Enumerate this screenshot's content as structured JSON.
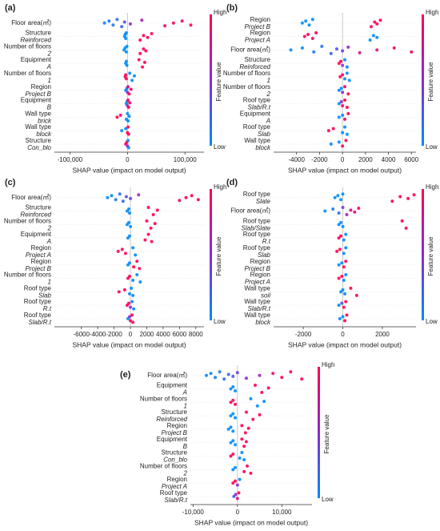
{
  "chart_data": [
    {
      "type": "beeswarm",
      "panel": "(a)",
      "xlabel": "SHAP value (impact on model output)",
      "colorbar_high": "High",
      "colorbar_low": "Low",
      "colorbar_label": "Feature value",
      "xlim": [
        -127000,
        133000
      ],
      "xticks": [
        {
          "value": -100000,
          "label": "-100,000"
        },
        0,
        {
          "value": 100000,
          "label": "100,000"
        }
      ],
      "features": [
        {
          "name": "Floor area(㎡)",
          "shap": [
            -40000,
            -32000,
            -25000,
            -18000,
            -10000,
            -5000,
            5000,
            25000,
            65000,
            80000,
            95000,
            110000
          ],
          "feature_value": [
            0.05,
            0.1,
            0.1,
            0.15,
            0.2,
            0.3,
            0.5,
            0.6,
            0.9,
            0.95,
            0.9,
            1
          ]
        },
        {
          "name": "Structure",
          "value": "Reinforced",
          "shap": [
            -5000,
            -4000,
            -3000,
            -2000,
            22000,
            28000,
            35000,
            42000
          ],
          "feature_value": [
            0,
            0,
            0,
            0,
            1,
            1,
            1,
            1
          ]
        },
        {
          "name": "Number of floors",
          "value": "2",
          "shap": [
            -6000,
            -4000,
            -2000,
            -1000,
            22000,
            28000,
            32000
          ],
          "feature_value": [
            0,
            0,
            0,
            0,
            1,
            1,
            1
          ]
        },
        {
          "name": "Equipment",
          "value": "A",
          "shap": [
            -3000,
            -2000,
            -1000,
            20000,
            26000,
            30000
          ],
          "feature_value": [
            0,
            0,
            0,
            1,
            1,
            1
          ]
        },
        {
          "name": "Number of floors",
          "value": "1",
          "shap": [
            -4000,
            -3000,
            -2000,
            4000,
            8000,
            12000
          ],
          "feature_value": [
            1,
            1,
            1,
            0,
            0,
            0
          ]
        },
        {
          "name": "Region",
          "value": "Project B",
          "shap": [
            -3000,
            -1000,
            0,
            1000,
            3000,
            6000
          ],
          "feature_value": [
            0,
            0.2,
            0.5,
            0.8,
            1,
            1
          ]
        },
        {
          "name": "Equipment",
          "value": "B",
          "shap": [
            -2000,
            -1000,
            0,
            1000,
            2000,
            4000
          ],
          "feature_value": [
            0,
            0,
            0.5,
            1,
            1,
            1
          ]
        },
        {
          "name": "Wall type",
          "value": "brick",
          "shap": [
            -18000,
            -12000,
            -2000,
            0,
            1000,
            3000
          ],
          "feature_value": [
            1,
            1,
            0,
            0,
            0,
            0
          ]
        },
        {
          "name": "Wall type",
          "value": "block",
          "shap": [
            -10000,
            -3000,
            0,
            1000,
            2000
          ],
          "feature_value": [
            0,
            0,
            1,
            1,
            1
          ]
        },
        {
          "name": "Structure",
          "value": "Con_blo",
          "shap": [
            -3000,
            -1000,
            0,
            1000,
            2000
          ],
          "feature_value": [
            1,
            1,
            0.5,
            0,
            0
          ]
        }
      ]
    },
    {
      "type": "beeswarm",
      "panel": "(b)",
      "xlabel": "SHAP value (impact on model output)",
      "colorbar_high": "High",
      "colorbar_low": "Low",
      "colorbar_label": "Feature value",
      "xlim": [
        -6000,
        6400
      ],
      "xticks": [
        -4000,
        -2000,
        0,
        2000,
        4000,
        6000
      ],
      "features": [
        {
          "name": "Region",
          "value": "Project B",
          "shap": [
            -3500,
            -3200,
            -2900,
            -2600,
            2500,
            2800,
            3000,
            3300
          ],
          "feature_value": [
            0,
            0,
            0,
            0,
            1,
            1,
            1,
            1
          ]
        },
        {
          "name": "Region",
          "value": "Project A",
          "shap": [
            -3300,
            -3000,
            -2600,
            -2300,
            2400,
            2700,
            3000
          ],
          "feature_value": [
            1,
            1,
            1,
            1,
            0,
            0,
            0
          ]
        },
        {
          "name": "Floor area(㎡)",
          "shap": [
            -4500,
            -3500,
            -2500,
            -1800,
            -1000,
            -500,
            0,
            500,
            1500,
            3000,
            4500,
            6000
          ],
          "feature_value": [
            0,
            0,
            0.1,
            0.1,
            0.2,
            0.3,
            0.4,
            0.6,
            0.8,
            0.9,
            1,
            1
          ]
        },
        {
          "name": "Structure",
          "value": "Reinforced",
          "shap": [
            -300,
            -150,
            0,
            200,
            400
          ],
          "feature_value": [
            1,
            1,
            0.5,
            0,
            0
          ]
        },
        {
          "name": "Number of floors",
          "value": "1",
          "shap": [
            -200,
            0,
            200,
            400,
            600
          ],
          "feature_value": [
            1,
            1,
            0,
            0,
            0
          ]
        },
        {
          "name": "Number of floors",
          "value": "2",
          "shap": [
            -300,
            -100,
            0,
            200,
            500
          ],
          "feature_value": [
            0,
            0,
            0.5,
            1,
            1
          ]
        },
        {
          "name": "Roof type",
          "value": "Slab/R.t",
          "shap": [
            -300,
            -100,
            0,
            200,
            400
          ],
          "feature_value": [
            0,
            0.5,
            1,
            1,
            1
          ]
        },
        {
          "name": "Equipment",
          "value": "A",
          "shap": [
            -300,
            0,
            200,
            500
          ],
          "feature_value": [
            0,
            0,
            1,
            1
          ]
        },
        {
          "name": "Roof type",
          "value": "Slab",
          "shap": [
            -1200,
            -800,
            0,
            200,
            400
          ],
          "feature_value": [
            1,
            1,
            0,
            0,
            0
          ]
        },
        {
          "name": "Wall type",
          "value": "block",
          "shap": [
            -1000,
            -300,
            0,
            300
          ],
          "feature_value": [
            0,
            0,
            1,
            1
          ]
        }
      ]
    },
    {
      "type": "beeswarm",
      "panel": "(c)",
      "xlabel": "SHAP value (impact on model output)",
      "colorbar_high": "High",
      "colorbar_low": "Low",
      "colorbar_label": "Feature value",
      "xlim": [
        -9300,
        9000
      ],
      "xticks": [
        -6000,
        -4000,
        -2000,
        0,
        2000,
        4000,
        6000,
        8000
      ],
      "features": [
        {
          "name": "Floor area(㎡)",
          "shap": [
            -2800,
            -2300,
            -1800,
            -1300,
            -900,
            -500,
            0,
            1000,
            6000,
            6800,
            7500,
            8300
          ],
          "feature_value": [
            0,
            0,
            0.1,
            0.1,
            0.2,
            0.3,
            0.4,
            0.6,
            0.9,
            1,
            1,
            1
          ]
        },
        {
          "name": "Structure",
          "value": "Reinforced",
          "shap": [
            -400,
            -200,
            -100,
            2200,
            2800,
            3300
          ],
          "feature_value": [
            0,
            0,
            0,
            1,
            1,
            1
          ]
        },
        {
          "name": "Number of floors",
          "value": "2",
          "shap": [
            -400,
            -200,
            0,
            2000,
            2500,
            3000
          ],
          "feature_value": [
            0,
            0,
            0,
            1,
            1,
            1
          ]
        },
        {
          "name": "Equipment",
          "value": "A",
          "shap": [
            -300,
            -100,
            1800,
            2200,
            2600
          ],
          "feature_value": [
            0,
            0,
            1,
            1,
            1
          ]
        },
        {
          "name": "Region",
          "value": "Project A",
          "shap": [
            -1500,
            -1000,
            -600,
            300,
            600
          ],
          "feature_value": [
            1,
            1,
            1,
            0,
            0
          ]
        },
        {
          "name": "Region",
          "value": "Project B",
          "shap": [
            -300,
            -100,
            400,
            800,
            1100
          ],
          "feature_value": [
            0,
            0,
            1,
            1,
            1
          ]
        },
        {
          "name": "Number of floors",
          "value": "1",
          "shap": [
            -300,
            -100,
            300,
            800,
            1200
          ],
          "feature_value": [
            1,
            1,
            0,
            0,
            0
          ]
        },
        {
          "name": "Roof type",
          "value": "Slab",
          "shap": [
            -1400,
            -700,
            -100,
            100,
            300
          ],
          "feature_value": [
            1,
            1,
            0,
            0,
            0
          ]
        },
        {
          "name": "Roof type",
          "value": "R.t",
          "shap": [
            -400,
            -200,
            0,
            200,
            400
          ],
          "feature_value": [
            1,
            1,
            0.5,
            0,
            0
          ]
        },
        {
          "name": "Roof type",
          "value": "Slab/R.t",
          "shap": [
            -300,
            -100,
            0,
            200,
            300
          ],
          "feature_value": [
            0,
            0.5,
            1,
            1,
            1
          ]
        }
      ]
    },
    {
      "type": "beeswarm",
      "panel": "(d)",
      "xlabel": "SHAP value (impact on model output)",
      "colorbar_high": "High",
      "colorbar_low": "Low",
      "colorbar_label": "Feature value",
      "xlim": [
        -3500,
        3700
      ],
      "xticks": [
        -2000,
        0,
        2000
      ],
      "features": [
        {
          "name": "Roof type",
          "value": "Slate",
          "shap": [
            -400,
            -250,
            -100,
            0,
            2500,
            2900,
            3300,
            3600
          ],
          "feature_value": [
            0,
            0,
            0,
            0,
            1,
            1,
            1,
            1
          ]
        },
        {
          "name": "Floor area(㎡)",
          "shap": [
            -900,
            -500,
            -200,
            0,
            200,
            400,
            600,
            800
          ],
          "feature_value": [
            0,
            0.1,
            0.2,
            0.4,
            0.6,
            0.8,
            0.9,
            1
          ]
        },
        {
          "name": "Roof type",
          "value": "Slab/Slate",
          "shap": [
            -200,
            -100,
            0,
            3000,
            3200
          ],
          "feature_value": [
            0,
            0,
            0,
            1,
            1
          ]
        },
        {
          "name": "Roof type",
          "value": "R.t",
          "shap": [
            -200,
            -100,
            50,
            150
          ],
          "feature_value": [
            1,
            1,
            0,
            0
          ]
        },
        {
          "name": "Roof type",
          "value": "Slab",
          "shap": [
            -300,
            -150,
            50,
            150
          ],
          "feature_value": [
            1,
            1,
            0,
            0
          ]
        },
        {
          "name": "Region",
          "value": "Project B",
          "shap": [
            -200,
            -50,
            50,
            150
          ],
          "feature_value": [
            0,
            0,
            1,
            1
          ]
        },
        {
          "name": "Region",
          "value": "Project A",
          "shap": [
            -200,
            -50,
            50,
            150
          ],
          "feature_value": [
            1,
            1,
            0,
            0
          ]
        },
        {
          "name": "Wall type",
          "value": "soil",
          "shap": [
            -100,
            0,
            100,
            400,
            700
          ],
          "feature_value": [
            0,
            0,
            0,
            1,
            1
          ]
        },
        {
          "name": "Wall type",
          "value": "Slab/R.t",
          "shap": [
            -200,
            -50,
            50,
            150
          ],
          "feature_value": [
            0,
            0.3,
            1,
            1
          ]
        },
        {
          "name": "Wall type",
          "value": "block",
          "shap": [
            -150,
            0,
            100,
            200
          ],
          "feature_value": [
            0,
            0,
            1,
            1
          ]
        }
      ]
    },
    {
      "type": "beeswarm",
      "panel": "(e)",
      "xlabel": "SHAP value (impact on model output)",
      "colorbar_high": "High",
      "colorbar_low": "Low",
      "colorbar_label": "Feature value",
      "xlim": [
        -10600,
        16800
      ],
      "xticks": [
        {
          "value": -10000,
          "label": "-10,000"
        },
        0,
        {
          "value": 10000,
          "label": "10,000"
        }
      ],
      "features": [
        {
          "name": "Floor area(㎡)",
          "shap": [
            -7000,
            -6000,
            -5000,
            -4000,
            -3000,
            -2000,
            -1000,
            0,
            2000,
            5000,
            8000,
            10000,
            12000,
            14500
          ],
          "feature_value": [
            0,
            0,
            0.1,
            0.1,
            0.15,
            0.2,
            0.3,
            0.4,
            0.5,
            0.6,
            0.9,
            1,
            1,
            1
          ]
        },
        {
          "name": "Equipment",
          "value": "A",
          "shap": [
            -1500,
            -1000,
            -500,
            4000,
            5500,
            7000
          ],
          "feature_value": [
            0,
            0,
            0,
            1,
            1,
            1
          ]
        },
        {
          "name": "Number of floors",
          "value": "1",
          "shap": [
            -1500,
            -1000,
            -500,
            3000,
            4500,
            6000
          ],
          "feature_value": [
            1,
            1,
            1,
            0,
            0,
            0
          ]
        },
        {
          "name": "Structure",
          "value": "Reinforced",
          "shap": [
            -1500,
            -1000,
            -500,
            2000,
            3500,
            5000
          ],
          "feature_value": [
            0,
            0,
            0,
            1,
            1,
            1
          ]
        },
        {
          "name": "Region",
          "value": "Project B",
          "shap": [
            -2000,
            -1500,
            -1000,
            1000,
            1800,
            2500
          ],
          "feature_value": [
            0,
            0,
            0,
            1,
            1,
            1
          ]
        },
        {
          "name": "Equipment",
          "value": "B",
          "shap": [
            -1500,
            -1000,
            -500,
            1000,
            1500,
            2000
          ],
          "feature_value": [
            0,
            0,
            0,
            1,
            1,
            1
          ]
        },
        {
          "name": "Structure",
          "value": "Con_blo",
          "shap": [
            -1500,
            -1000,
            500,
            1000,
            1500
          ],
          "feature_value": [
            1,
            1,
            0,
            0,
            0
          ]
        },
        {
          "name": "Number of floors",
          "value": "2",
          "shap": [
            -1000,
            -500,
            1500,
            2200,
            3000
          ],
          "feature_value": [
            0,
            0,
            1,
            1,
            1
          ]
        },
        {
          "name": "Region",
          "value": "Project A",
          "shap": [
            -1000,
            -500,
            0,
            500
          ],
          "feature_value": [
            1,
            1,
            0.5,
            0
          ]
        },
        {
          "name": "Roof type",
          "value": "Slab/R.t",
          "shap": [
            -800,
            -400,
            0,
            300
          ],
          "feature_value": [
            0.2,
            0.5,
            0.8,
            1
          ]
        }
      ]
    }
  ]
}
